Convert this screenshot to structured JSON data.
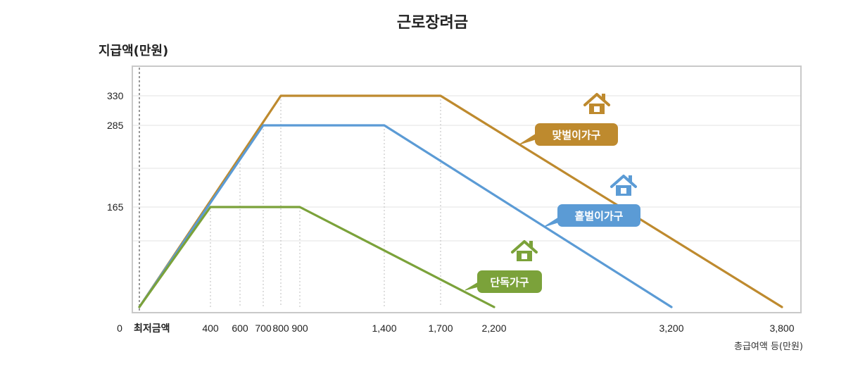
{
  "chart_data": {
    "type": "line",
    "title": "근로장려금",
    "ylabel": "지급액(만원)",
    "xlabel": "총급여액 등(만원)",
    "y_ticks": [
      165,
      285,
      330
    ],
    "x_ticks": [
      {
        "value": 0,
        "label": "0"
      },
      {
        "value": 400,
        "label": "400"
      },
      {
        "value": 600,
        "label": "600"
      },
      {
        "value": 700,
        "label": "700"
      },
      {
        "value": 800,
        "label": "800"
      },
      {
        "value": 900,
        "label": "900"
      },
      {
        "value": 1400,
        "label": "1,400"
      },
      {
        "value": 1700,
        "label": "1,700"
      },
      {
        "value": 2200,
        "label": "2,200"
      },
      {
        "value": 3200,
        "label": "3,200"
      },
      {
        "value": 3800,
        "label": "3,800"
      }
    ],
    "min_label": "최저금액",
    "series": [
      {
        "name": "맞벌이가구",
        "color": "#be8a2e",
        "points": [
          [
            0,
            0
          ],
          [
            800,
            330
          ],
          [
            1700,
            330
          ],
          [
            3800,
            0
          ]
        ]
      },
      {
        "name": "홑벌이가구",
        "color": "#5b9bd5",
        "points": [
          [
            0,
            0
          ],
          [
            700,
            285
          ],
          [
            1400,
            285
          ],
          [
            3200,
            0
          ]
        ]
      },
      {
        "name": "단독가구",
        "color": "#7ba23a",
        "points": [
          [
            0,
            0
          ],
          [
            400,
            165
          ],
          [
            900,
            165
          ],
          [
            2200,
            0
          ]
        ]
      }
    ],
    "grid": true
  },
  "icons": [
    "house-icon"
  ]
}
